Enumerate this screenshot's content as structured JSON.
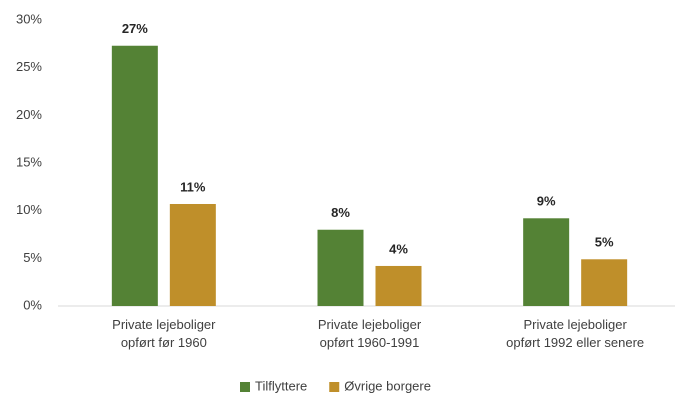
{
  "chart_data": {
    "type": "bar",
    "categories": [
      "Private lejeboliger\nopført før 1960",
      "Private lejeboliger\nopført 1960-1991",
      "Private lejeboliger\nopført 1992 eller senere"
    ],
    "series": [
      {
        "name": "Tilflyttere",
        "color": "#548235",
        "values": [
          27.3,
          8.0,
          9.2
        ],
        "value_labels": [
          "27%",
          "8%",
          "9%"
        ]
      },
      {
        "name": "Øvrige borgere",
        "color": "#bf8f2a",
        "values": [
          10.7,
          4.2,
          4.9
        ],
        "value_labels": [
          "11%",
          "4%",
          "5%"
        ]
      }
    ],
    "ylim": [
      0,
      30
    ],
    "yticks": [
      {
        "value": 0,
        "label": "0%"
      },
      {
        "value": 5,
        "label": "5%"
      },
      {
        "value": 10,
        "label": "10%"
      },
      {
        "value": 15,
        "label": "15%"
      },
      {
        "value": 20,
        "label": "20%"
      },
      {
        "value": 25,
        "label": "25%"
      },
      {
        "value": 30,
        "label": "30%"
      }
    ],
    "grid": false,
    "legend": "bottom"
  }
}
